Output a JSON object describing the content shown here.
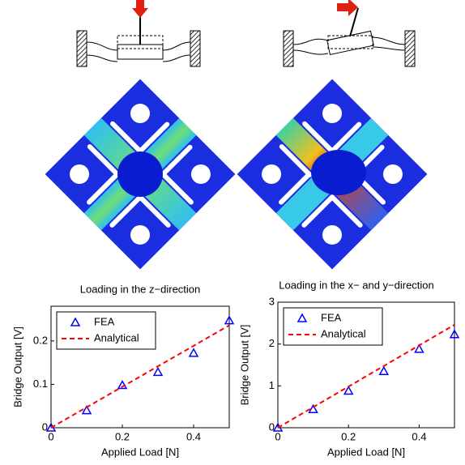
{
  "chart_data": [
    {
      "type": "line",
      "title": "Loading in the z−direction",
      "x_label": "Applied Load [N]",
      "y_label": "Bridge Output [V]",
      "xlim": [
        0,
        0.5
      ],
      "xticks": [
        0,
        0.2,
        0.4
      ],
      "ylim": [
        0,
        0.28
      ],
      "yticks": [
        0,
        0.1,
        0.2
      ],
      "legend": "upper left",
      "series": [
        {
          "name": "FEA",
          "color": "#0000ff",
          "style": "triangle",
          "x": [
            0,
            0.1,
            0.2,
            0.3,
            0.4,
            0.5
          ],
          "values": [
            0,
            0.04,
            0.098,
            0.128,
            0.172,
            0.247
          ]
        },
        {
          "name": "Analytical",
          "color": "#ff0000",
          "style": "dashed",
          "x": [
            0,
            0.5
          ],
          "values": [
            0,
            0.236
          ]
        }
      ]
    },
    {
      "type": "line",
      "title": "Loading in the x− and y−direction",
      "x_label": "Applied Load [N]",
      "y_label": "Bridge Output [V]",
      "xlim": [
        0,
        0.5
      ],
      "xticks": [
        0,
        0.2,
        0.4
      ],
      "ylim": [
        0,
        3
      ],
      "yticks": [
        0,
        1,
        2,
        3
      ],
      "legend": "upper left",
      "series": [
        {
          "name": "FEA",
          "color": "#0000ff",
          "style": "triangle",
          "x": [
            0,
            0.1,
            0.2,
            0.3,
            0.4,
            0.5
          ],
          "values": [
            0,
            0.44,
            0.88,
            1.35,
            1.88,
            2.23
          ]
        },
        {
          "name": "Analytical",
          "color": "#ff0000",
          "style": "dashed",
          "x": [
            0,
            0.5
          ],
          "values": [
            0,
            2.46
          ]
        }
      ]
    }
  ]
}
